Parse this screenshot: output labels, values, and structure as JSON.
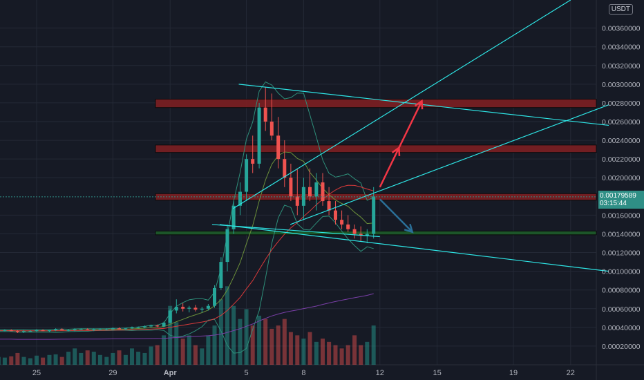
{
  "currency": "USDT",
  "last_price": {
    "value": "0.00179589",
    "countdown": "03:15:44",
    "color": "#2f8f86"
  },
  "colors": {
    "background": "#161a25",
    "up": "#26a69a",
    "down": "#ef5350",
    "trendline": "#2ee6e6",
    "resistance_zone": "#7a1f22",
    "support_zone": "#1d5a2a",
    "arrow_up": "#f23645",
    "arrow_down": "#2a6f97",
    "bollinger": "#2e8f7a",
    "ma_red": "#d93a3a",
    "ma_purple": "#7a3fa8"
  },
  "chart_data": {
    "type": "candlestick",
    "y_axis": {
      "range": [
        0.0,
        0.0039
      ],
      "ticks": [
        "0.00020000",
        "0.00040000",
        "0.00060000",
        "0.00080000",
        "0.00100000",
        "0.00120000",
        "0.00140000",
        "0.00160000",
        "0.00200000",
        "0.00220000",
        "0.00240000",
        "0.00260000",
        "0.00280000",
        "0.00300000",
        "0.00320000",
        "0.00340000",
        "0.00360000"
      ]
    },
    "x_axis": {
      "ticks": [
        {
          "label": "25",
          "day": 25
        },
        {
          "label": "29",
          "day": 29
        },
        {
          "label": "Apr",
          "day": 32
        },
        {
          "label": "5",
          "day": 36
        },
        {
          "label": "8",
          "day": 39
        },
        {
          "label": "12",
          "day": 43
        },
        {
          "label": "15",
          "day": 46
        },
        {
          "label": "19",
          "day": 50
        },
        {
          "label": "22",
          "day": 53
        }
      ]
    },
    "zones": [
      {
        "type": "resistance",
        "low": 0.00275,
        "high": 0.00284
      },
      {
        "type": "resistance",
        "low": 0.00227,
        "high": 0.00235
      },
      {
        "type": "resistance",
        "low": 0.00176,
        "high": 0.00183
      },
      {
        "type": "support",
        "low": 0.00139,
        "high": 0.00143
      }
    ],
    "trendlines": [
      {
        "from": {
          "day": 35.6,
          "price": 0.003
        },
        "to": {
          "day": 55.0,
          "price": 0.00256
        }
      },
      {
        "from": {
          "day": 34.6,
          "price": 0.0015
        },
        "to": {
          "day": 55.0,
          "price": 0.001
        }
      },
      {
        "from": {
          "day": 35.3,
          "price": 0.00167
        },
        "to": {
          "day": 53.0,
          "price": 0.0039
        }
      },
      {
        "from": {
          "day": 38.3,
          "price": 0.0015
        },
        "to": {
          "day": 55.0,
          "price": 0.00278
        }
      },
      {
        "from": {
          "day": 34.2,
          "price": 0.0015
        },
        "to": {
          "day": 43.0,
          "price": 0.00137
        }
      }
    ],
    "arrows": [
      {
        "kind": "up",
        "from": {
          "day": 43.0,
          "price": 0.0019
        },
        "to": {
          "day": 44.0,
          "price": 0.00232
        }
      },
      {
        "kind": "up",
        "from": {
          "day": 44.0,
          "price": 0.00232
        },
        "to": {
          "day": 45.2,
          "price": 0.00282
        }
      },
      {
        "kind": "down",
        "from": {
          "day": 43.0,
          "price": 0.00177
        },
        "to": {
          "day": 44.7,
          "price": 0.00142
        }
      }
    ],
    "candles": [
      [
        20.0,
        0.00036,
        0.00038,
        0.00035,
        0.00037
      ],
      [
        20.33,
        0.00037,
        0.00038,
        0.00036,
        0.00036
      ],
      [
        20.67,
        0.00036,
        0.00037,
        0.00035,
        0.00036
      ],
      [
        21.0,
        0.00036,
        0.00038,
        0.00035,
        0.00037
      ],
      [
        21.33,
        0.00037,
        0.00038,
        0.00036,
        0.00037
      ],
      [
        21.67,
        0.00037,
        0.00038,
        0.00036,
        0.00036
      ],
      [
        22.0,
        0.00036,
        0.00037,
        0.00035,
        0.00037
      ],
      [
        22.33,
        0.00037,
        0.00038,
        0.00036,
        0.00036
      ],
      [
        22.67,
        0.00036,
        0.00037,
        0.00035,
        0.00036
      ],
      [
        23.0,
        0.00036,
        0.00038,
        0.00035,
        0.00037
      ],
      [
        23.33,
        0.00037,
        0.00038,
        0.00036,
        0.00037
      ],
      [
        23.67,
        0.00037,
        0.00038,
        0.00036,
        0.00036
      ],
      [
        24.0,
        0.00036,
        0.00037,
        0.00034,
        0.00035
      ],
      [
        24.33,
        0.00035,
        0.00037,
        0.00034,
        0.00036
      ],
      [
        24.67,
        0.00036,
        0.00037,
        0.00035,
        0.00036
      ],
      [
        25.0,
        0.00036,
        0.00038,
        0.00035,
        0.00037
      ],
      [
        25.33,
        0.00037,
        0.00038,
        0.00036,
        0.00036
      ],
      [
        25.67,
        0.00036,
        0.00037,
        0.00035,
        0.00037
      ],
      [
        26.0,
        0.00037,
        0.00039,
        0.00036,
        0.00038
      ],
      [
        26.33,
        0.00038,
        0.00039,
        0.00037,
        0.00037
      ],
      [
        26.67,
        0.00037,
        0.00038,
        0.00036,
        0.00037
      ],
      [
        27.0,
        0.00037,
        0.00039,
        0.00036,
        0.00038
      ],
      [
        27.33,
        0.00038,
        0.00039,
        0.00037,
        0.00038
      ],
      [
        27.67,
        0.00038,
        0.00039,
        0.00037,
        0.00037
      ],
      [
        28.0,
        0.00037,
        0.00039,
        0.00036,
        0.00038
      ],
      [
        28.33,
        0.00038,
        0.00039,
        0.00037,
        0.00038
      ],
      [
        28.67,
        0.00038,
        0.00039,
        0.00037,
        0.00038
      ],
      [
        29.0,
        0.00038,
        0.0004,
        0.00037,
        0.00039
      ],
      [
        29.33,
        0.00039,
        0.0004,
        0.00038,
        0.00038
      ],
      [
        29.67,
        0.00038,
        0.00039,
        0.00037,
        0.00039
      ],
      [
        30.0,
        0.00039,
        0.00041,
        0.00038,
        0.0004
      ],
      [
        30.33,
        0.0004,
        0.00041,
        0.00039,
        0.0004
      ],
      [
        30.67,
        0.0004,
        0.00042,
        0.00039,
        0.00041
      ],
      [
        31.0,
        0.00041,
        0.00043,
        0.0004,
        0.00042
      ],
      [
        31.33,
        0.00042,
        0.00043,
        0.0004,
        0.00041
      ],
      [
        31.67,
        0.00041,
        0.00046,
        0.0004,
        0.00045
      ],
      [
        32.0,
        0.00045,
        0.0006,
        0.00044,
        0.00058
      ],
      [
        32.33,
        0.00058,
        0.0007,
        0.00055,
        0.00062
      ],
      [
        32.67,
        0.00062,
        0.00066,
        0.00057,
        0.0006
      ],
      [
        33.0,
        0.0006,
        0.00063,
        0.00056,
        0.00061
      ],
      [
        33.33,
        0.00061,
        0.00064,
        0.00057,
        0.00059
      ],
      [
        33.67,
        0.00059,
        0.00062,
        0.00056,
        0.0006
      ],
      [
        34.0,
        0.0006,
        0.00065,
        0.00058,
        0.00063
      ],
      [
        34.33,
        0.00063,
        0.00085,
        0.00061,
        0.00082
      ],
      [
        34.67,
        0.00082,
        0.00115,
        0.0008,
        0.0011
      ],
      [
        35.0,
        0.0011,
        0.0015,
        0.001,
        0.00145
      ],
      [
        35.33,
        0.00145,
        0.00175,
        0.0014,
        0.0017
      ],
      [
        35.67,
        0.0017,
        0.00195,
        0.0016,
        0.00185
      ],
      [
        36.0,
        0.00185,
        0.00225,
        0.00175,
        0.0022
      ],
      [
        36.33,
        0.0022,
        0.00245,
        0.00205,
        0.00215
      ],
      [
        36.67,
        0.00215,
        0.0028,
        0.0021,
        0.00275
      ],
      [
        37.0,
        0.00275,
        0.00297,
        0.0025,
        0.0026
      ],
      [
        37.33,
        0.0026,
        0.0029,
        0.0024,
        0.00245
      ],
      [
        37.67,
        0.00245,
        0.00265,
        0.0021,
        0.0022
      ],
      [
        38.0,
        0.0022,
        0.0024,
        0.0019,
        0.002
      ],
      [
        38.33,
        0.002,
        0.00215,
        0.00175,
        0.0018
      ],
      [
        38.67,
        0.0018,
        0.0021,
        0.0016,
        0.0017
      ],
      [
        39.0,
        0.0017,
        0.002,
        0.00155,
        0.0019
      ],
      [
        39.33,
        0.0019,
        0.0021,
        0.00175,
        0.0018
      ],
      [
        39.67,
        0.0018,
        0.00205,
        0.00165,
        0.00195
      ],
      [
        40.0,
        0.00195,
        0.00205,
        0.0017,
        0.00175
      ],
      [
        40.33,
        0.00175,
        0.0019,
        0.0016,
        0.00165
      ],
      [
        40.67,
        0.00165,
        0.00175,
        0.0015,
        0.00155
      ],
      [
        41.0,
        0.00155,
        0.00165,
        0.00145,
        0.0015
      ],
      [
        41.33,
        0.0015,
        0.0016,
        0.00142,
        0.00145
      ],
      [
        41.67,
        0.00145,
        0.0015,
        0.00135,
        0.0014
      ],
      [
        42.0,
        0.0014,
        0.00148,
        0.00132,
        0.00138
      ],
      [
        42.33,
        0.00138,
        0.00145,
        0.0013,
        0.0014
      ],
      [
        42.67,
        0.0014,
        0.0019,
        0.00135,
        0.0018
      ]
    ],
    "volume": [
      [
        20.0,
        1e-05
      ],
      [
        20.33,
        1.2e-05
      ],
      [
        20.67,
        8e-06
      ],
      [
        21.0,
        1.5e-05
      ],
      [
        21.33,
        1e-05
      ],
      [
        21.67,
        1.2e-05
      ],
      [
        22.0,
        9e-06
      ],
      [
        22.33,
        1.4e-05
      ],
      [
        22.67,
        1e-05
      ],
      [
        23.0,
        1.2e-05
      ],
      [
        23.33,
        1.1e-05
      ],
      [
        23.67,
        1.3e-05
      ],
      [
        24.0,
        1.8e-05
      ],
      [
        24.33,
        1.2e-05
      ],
      [
        24.67,
        1e-05
      ],
      [
        25.0,
        1.4e-05
      ],
      [
        25.33,
        1.1e-05
      ],
      [
        25.67,
        1.5e-05
      ],
      [
        26.0,
        1.6e-05
      ],
      [
        26.33,
        1.2e-05
      ],
      [
        26.67,
        2e-05
      ],
      [
        27.0,
        2.5e-05
      ],
      [
        27.33,
        1.8e-05
      ],
      [
        27.67,
        2.2e-05
      ],
      [
        28.0,
        2e-05
      ],
      [
        28.33,
        1.5e-05
      ],
      [
        28.67,
        1.2e-05
      ],
      [
        29.0,
        1.8e-05
      ],
      [
        29.33,
        2.2e-05
      ],
      [
        29.67,
        1.5e-05
      ],
      [
        30.0,
        2.5e-05
      ],
      [
        30.33,
        2e-05
      ],
      [
        30.67,
        1.8e-05
      ],
      [
        31.0,
        2.8e-05
      ],
      [
        31.33,
        3e-05
      ],
      [
        31.67,
        4.5e-05
      ],
      [
        32.0,
        9e-05
      ],
      [
        32.33,
        6.5e-05
      ],
      [
        32.67,
        4e-05
      ],
      [
        33.0,
        4.5e-05
      ],
      [
        33.33,
        3e-05
      ],
      [
        33.67,
        2.5e-05
      ],
      [
        34.0,
        4.5e-05
      ],
      [
        34.33,
        6e-05
      ],
      [
        34.67,
        0.0001
      ],
      [
        35.0,
        0.00012
      ],
      [
        35.33,
        9e-05
      ],
      [
        35.67,
        7e-05
      ],
      [
        36.0,
        8.5e-05
      ],
      [
        36.33,
        6e-05
      ],
      [
        36.67,
        7.5e-05
      ],
      [
        37.0,
        7e-05
      ],
      [
        37.33,
        5.5e-05
      ],
      [
        37.67,
        6e-05
      ],
      [
        38.0,
        7e-05
      ],
      [
        38.33,
        5e-05
      ],
      [
        38.67,
        4.5e-05
      ],
      [
        39.0,
        4e-05
      ],
      [
        39.33,
        5e-05
      ],
      [
        39.67,
        3.5e-05
      ],
      [
        40.0,
        4e-05
      ],
      [
        40.33,
        3.5e-05
      ],
      [
        40.67,
        3e-05
      ],
      [
        41.0,
        2.5e-05
      ],
      [
        41.33,
        3e-05
      ],
      [
        41.67,
        4.5e-05
      ],
      [
        42.0,
        3e-05
      ],
      [
        42.33,
        3.5e-05
      ],
      [
        42.67,
        6e-05
      ]
    ]
  }
}
